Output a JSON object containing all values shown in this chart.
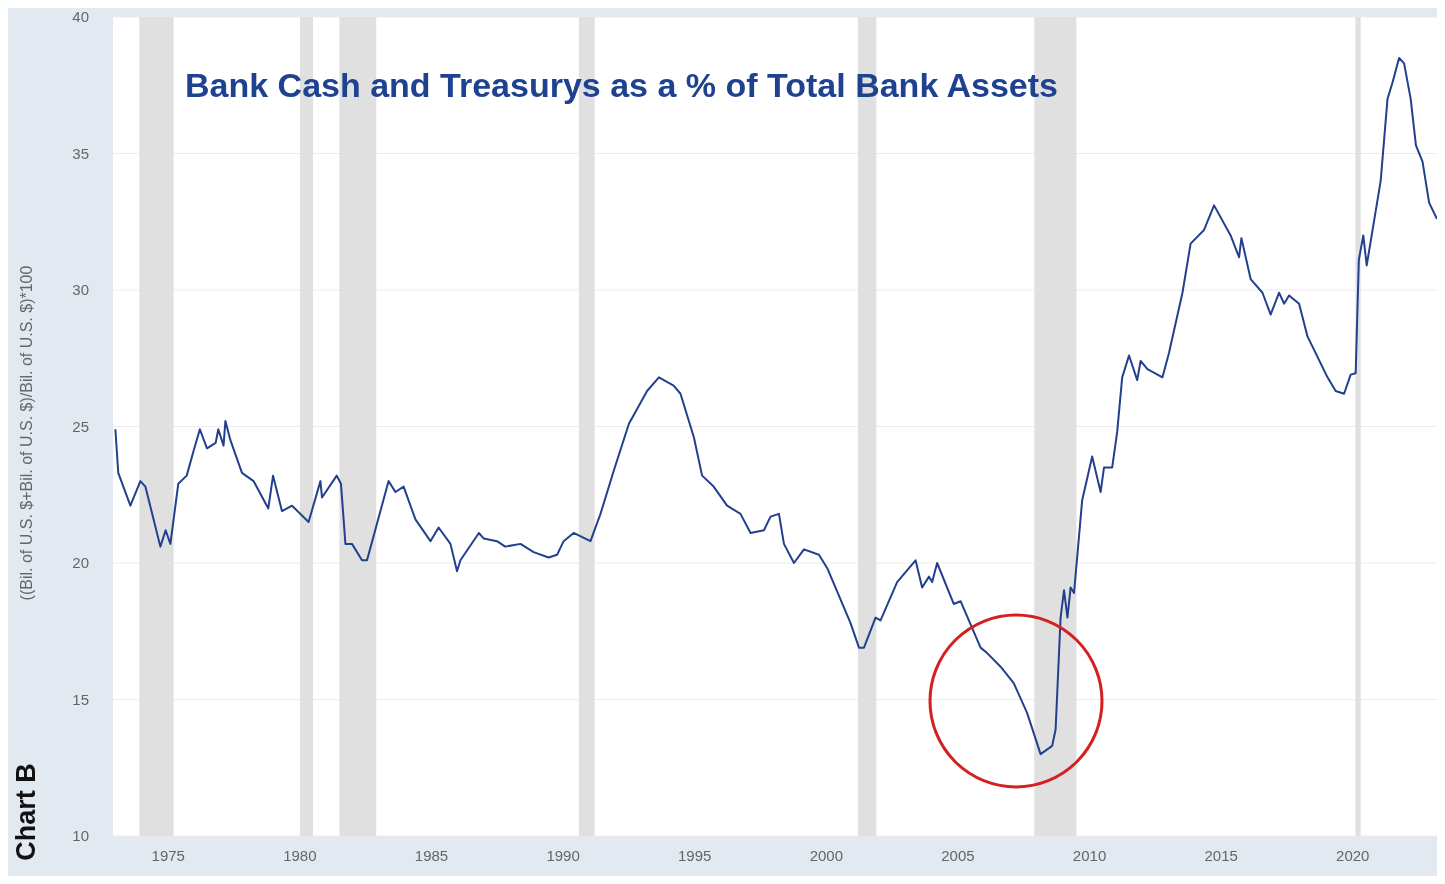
{
  "chart_data": {
    "type": "line",
    "title": "Bank Cash and Treasurys as a % of Total Bank Assets",
    "ylabel": "((Bil. of U.S. $+Bil. of U.S. $)/Bil. of U.S. $)*100",
    "annotations": [
      "Chart B"
    ],
    "x": [
      1972.99,
      1973.1,
      1973.56,
      1973.94,
      1974.13,
      1974.7,
      1974.9,
      1975.08,
      1975.38,
      1975.7,
      1975.96,
      1976.2,
      1976.47,
      1976.8,
      1976.9,
      1977.1,
      1977.17,
      1977.36,
      1977.8,
      1978.24,
      1978.8,
      1978.98,
      1979.32,
      1979.7,
      1980.33,
      1980.78,
      1980.84,
      1981.4,
      1981.56,
      1981.73,
      1981.98,
      1982.36,
      1982.55,
      1983.37,
      1983.63,
      1983.94,
      1984.39,
      1984.96,
      1985.27,
      1985.72,
      1985.97,
      1986.1,
      1986.8,
      1986.98,
      1987.49,
      1987.8,
      1988.38,
      1988.88,
      1989.45,
      1989.77,
      1990.02,
      1990.4,
      1991.04,
      1991.42,
      1991.93,
      1992.5,
      1993.19,
      1993.64,
      1994.2,
      1994.46,
      1994.97,
      1995.28,
      1995.72,
      1996.23,
      1996.74,
      1997.12,
      1997.63,
      1997.88,
      1998.2,
      1998.39,
      1998.77,
      1999.15,
      1999.72,
      2000.04,
      2000.92,
      2001.24,
      2001.43,
      2001.87,
      2002.06,
      2002.69,
      2003.39,
      2003.64,
      2003.9,
      2004.02,
      2004.21,
      2004.84,
      2005.1,
      2005.86,
      2006.11,
      2006.62,
      2007.12,
      2007.63,
      2008.14,
      2008.58,
      2008.71,
      2008.9,
      2009.03,
      2009.16,
      2009.28,
      2009.41,
      2009.72,
      2010.1,
      2010.42,
      2010.55,
      2010.86,
      2011.05,
      2011.24,
      2011.5,
      2011.81,
      2011.94,
      2012.2,
      2012.58,
      2012.77,
      2013.02,
      2013.53,
      2013.84,
      2014.35,
      2014.73,
      2015.36,
      2015.68,
      2015.77,
      2016.12,
      2016.57,
      2016.88,
      2017.2,
      2017.39,
      2017.58,
      2017.96,
      2018.28,
      2019.04,
      2019.35,
      2019.67,
      2019.92,
      2020.11,
      2020.23,
      2020.4,
      2020.53,
      2021.06,
      2021.32,
      2021.51,
      2021.76,
      2021.95,
      2022.2,
      2022.4,
      2022.65,
      2022.9,
      2023.2
    ],
    "series": [
      {
        "color": "#23408e",
        "values": [
          24.9,
          23.3,
          22.1,
          23.0,
          22.8,
          20.6,
          21.2,
          20.7,
          22.9,
          23.2,
          24.1,
          24.9,
          24.2,
          24.4,
          24.9,
          24.3,
          25.2,
          24.5,
          23.3,
          23.0,
          22.0,
          23.2,
          21.9,
          22.1,
          21.5,
          23.0,
          22.4,
          23.2,
          22.9,
          20.7,
          20.7,
          20.1,
          20.1,
          23.0,
          22.6,
          22.8,
          21.6,
          20.8,
          21.3,
          20.7,
          19.7,
          20.1,
          21.1,
          20.9,
          20.8,
          20.6,
          20.7,
          20.4,
          20.2,
          20.3,
          20.8,
          21.1,
          20.8,
          21.8,
          23.4,
          25.1,
          26.3,
          26.8,
          26.5,
          26.2,
          24.6,
          23.2,
          22.8,
          22.1,
          21.8,
          21.1,
          21.2,
          21.7,
          21.8,
          20.7,
          20.0,
          20.5,
          20.3,
          19.8,
          17.8,
          16.9,
          16.9,
          18.0,
          17.9,
          19.3,
          20.1,
          19.1,
          19.5,
          19.3,
          20.0,
          18.5,
          18.6,
          16.9,
          16.7,
          16.2,
          15.6,
          14.5,
          13.0,
          13.3,
          13.9,
          18.0,
          19.0,
          18.0,
          19.1,
          18.9,
          22.3,
          23.9,
          22.6,
          23.5,
          23.5,
          24.8,
          26.8,
          27.6,
          26.7,
          27.4,
          27.1,
          26.9,
          26.8,
          27.7,
          29.9,
          31.7,
          32.2,
          33.1,
          32.0,
          31.2,
          31.9,
          30.4,
          29.9,
          29.1,
          29.9,
          29.5,
          29.8,
          29.5,
          28.3,
          26.8,
          26.3,
          26.2,
          26.9,
          26.95,
          31.1,
          32.0,
          30.9,
          34.0,
          37.0,
          37.6,
          38.5,
          38.3,
          37.0,
          35.3,
          34.7,
          33.2,
          32.6
        ]
      }
    ],
    "xlim": [
      1972.9,
      2023.2
    ],
    "xticks": [
      1975,
      1980,
      1985,
      1990,
      1995,
      2000,
      2005,
      2010,
      2015,
      2020
    ],
    "ylim": [
      10,
      40
    ],
    "yticks": [
      10,
      15,
      20,
      25,
      30,
      35,
      40
    ],
    "grid": "y",
    "marker": "none",
    "bands": [
      {
        "axis": "x",
        "from": 1973.9,
        "to": 1975.2,
        "color": "#e0e0e0"
      },
      {
        "axis": "x",
        "from": 1980.0,
        "to": 1980.5,
        "color": "#e0e0e0"
      },
      {
        "axis": "x",
        "from": 1981.5,
        "to": 1982.9,
        "color": "#e0e0e0"
      },
      {
        "axis": "x",
        "from": 1990.6,
        "to": 1991.2,
        "color": "#e0e0e0"
      },
      {
        "axis": "x",
        "from": 2001.2,
        "to": 2001.9,
        "color": "#e0e0e0"
      },
      {
        "axis": "x",
        "from": 2007.9,
        "to": 2009.5,
        "color": "#e0e0e0"
      },
      {
        "axis": "x",
        "from": 2020.1,
        "to": 2020.3,
        "color": "#e0e0e0"
      }
    ]
  }
}
